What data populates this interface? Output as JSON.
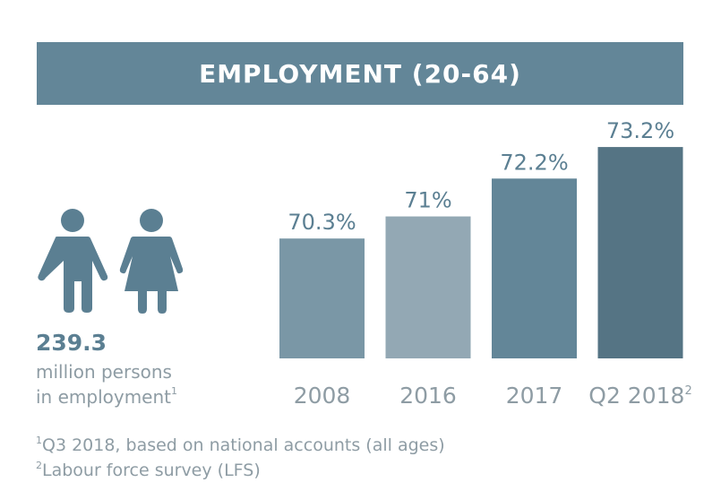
{
  "header": {
    "title": "EMPLOYMENT (20-64)"
  },
  "kpi": {
    "value": "239.3",
    "label_line1": "million persons",
    "label_line2": "in employment",
    "label_footnote_mark": "1"
  },
  "icons": [
    "man-icon",
    "woman-icon"
  ],
  "chart_data": {
    "type": "bar",
    "categories": [
      "2008",
      "2016",
      "2017",
      "Q2 2018"
    ],
    "category_footnote_marks": [
      "",
      "",
      "",
      "2"
    ],
    "values": [
      70.3,
      71,
      72.2,
      73.2
    ],
    "value_labels": [
      "70.3%",
      "71%",
      "72.2%",
      "73.2%"
    ],
    "unit": "%",
    "colors": [
      "#7a97a6",
      "#93a8b4",
      "#638698",
      "#557484"
    ],
    "ylim": [
      66.5,
      73.6
    ],
    "title": "",
    "xlabel": "",
    "ylabel": "",
    "grid": false
  },
  "footnotes": [
    {
      "mark": "1",
      "text": "Q3 2018, based on national accounts (all ages)"
    },
    {
      "mark": "2",
      "text": "Labour force survey (LFS)"
    }
  ],
  "colors": {
    "banner": "#638698",
    "text_value": "#5b7f92",
    "text_muted": "#8e9ca4",
    "icon": "#5b7f92"
  }
}
